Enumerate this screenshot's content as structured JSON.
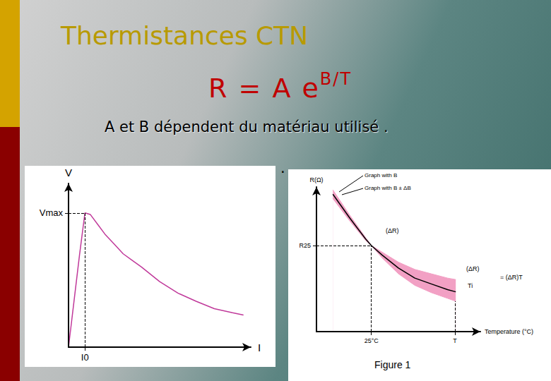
{
  "slide": {
    "title": "Thermistances CTN",
    "formula": {
      "base": "R = A e",
      "exponent": "B/T"
    },
    "text": "A et B dépendent du matériau utilisé .",
    "dot": "."
  },
  "chart_data": [
    {
      "type": "line",
      "x": [
        0,
        0.3,
        0.6,
        0.9,
        1.2,
        1.6,
        2.0,
        2.5,
        3,
        3.5,
        4,
        5,
        6,
        7,
        8,
        9,
        9.6
      ],
      "values": [
        0,
        2.8,
        5.6,
        8.2,
        8.1,
        7.5,
        6.9,
        6.3,
        5.7,
        5.3,
        4.9,
        4.0,
        3.3,
        2.8,
        2.35,
        2.1,
        1.96
      ],
      "color": "#c0399a",
      "x_label": "I",
      "y_label": "V",
      "xlim": [
        0,
        10
      ],
      "ylim": [
        0,
        10
      ],
      "xticks": [
        {
          "value": 0.9,
          "label": "I0"
        }
      ],
      "yticks": [
        {
          "value": 8.2,
          "label": "Vmax"
        }
      ],
      "grid": false
    },
    {
      "type": "line",
      "x": [
        1,
        2,
        3,
        3.35,
        4,
        5,
        6,
        7,
        8,
        8.5
      ],
      "series": [
        {
          "name": "Graph with B",
          "color": "#000000",
          "values": [
            9.5,
            7.9,
            6.4,
            5.95,
            5.3,
            4.4,
            3.7,
            3.3,
            2.9,
            2.75
          ]
        },
        {
          "name": "Graph with B ± ΔB",
          "color": "#f2a0c4",
          "values": [
            9.8,
            8.1,
            6.5,
            5.95,
            5.5,
            4.8,
            4.3,
            4.0,
            3.7,
            3.6
          ]
        },
        {
          "name": "Graph with B ± ΔB",
          "color": "#f2a0c4",
          "values": [
            9.2,
            7.7,
            6.3,
            5.95,
            5.1,
            4.0,
            3.2,
            2.7,
            2.3,
            2.1
          ]
        }
      ],
      "x_label": "Temperature (°C)",
      "y_label": "R(Ω)",
      "xlim": [
        0,
        10
      ],
      "ylim": [
        0,
        10
      ],
      "xticks": [
        {
          "value": 3.35,
          "label": "25°C"
        },
        {
          "value": 8.45,
          "label": "T"
        }
      ],
      "yticks": [
        {
          "value": 5.95,
          "label": "R25"
        }
      ],
      "annotations": [
        "(ΔR)",
        "(ΔR)",
        "Ti",
        "= (ΔR)T"
      ],
      "caption": "Figure 1",
      "grid": false
    }
  ]
}
